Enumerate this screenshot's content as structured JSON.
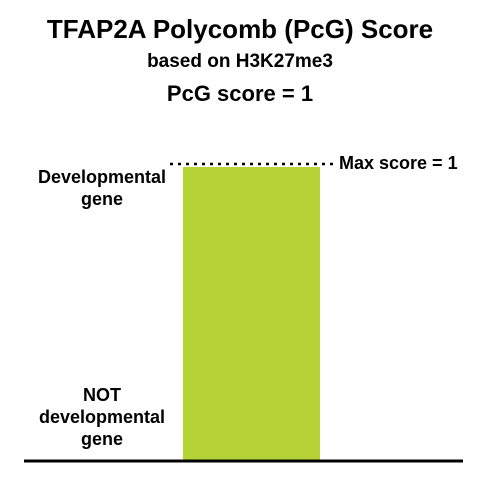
{
  "title": "TFAP2A Polycomb (PcG) Score",
  "subtitle": "based on H3K27me3",
  "score_text": "PcG score = 1",
  "chart_data": {
    "type": "bar",
    "categories": [
      "TFAP2A"
    ],
    "values": [
      1
    ],
    "ylim": [
      0,
      1
    ],
    "max_label": "Max score = 1",
    "y_top_label": "Developmental\ngene",
    "y_bottom_label": "NOT\ndevelopmental\ngene",
    "bar_color": "#b5d334"
  }
}
